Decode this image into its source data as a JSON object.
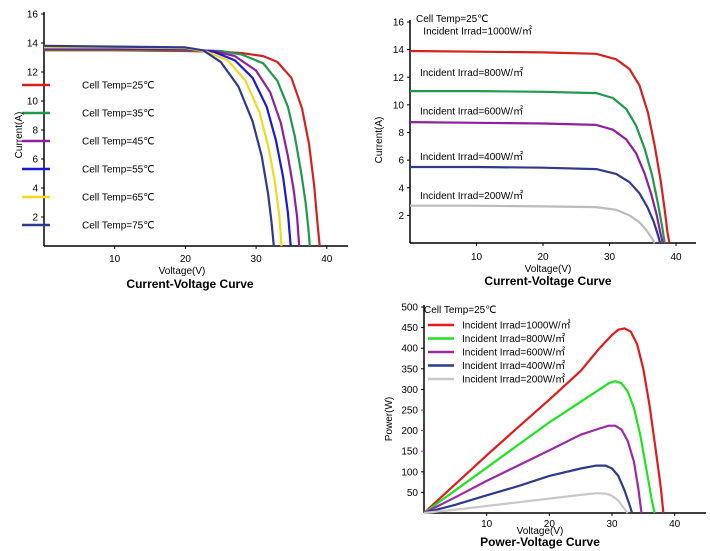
{
  "chart_data": [
    {
      "type": "line",
      "title": "Current-Voltage Curve",
      "xlabel": "Voltage(V)",
      "ylabel": "Current(A)",
      "xlim": [
        0,
        43
      ],
      "ylim": [
        0,
        16
      ],
      "xticks": [
        10,
        20,
        30,
        40
      ],
      "yticks": [
        2,
        4,
        6,
        8,
        10,
        12,
        14,
        16
      ],
      "legend_position": "left",
      "series": [
        {
          "name": "Cell Temp=25℃",
          "color": "#d42020",
          "x": [
            0,
            10,
            20,
            25,
            28,
            31,
            33,
            35,
            36.5,
            37.5,
            38.2,
            38.7,
            39
          ],
          "y": [
            13.5,
            13.5,
            13.45,
            13.4,
            13.3,
            13.1,
            12.7,
            11.6,
            9.5,
            7,
            4.2,
            1.5,
            0
          ]
        },
        {
          "name": "Cell Temp=35℃",
          "color": "#1f9a4c",
          "x": [
            0,
            10,
            20,
            25,
            28,
            31,
            33,
            34.5,
            35.5,
            36.4,
            37,
            37.4,
            37.6
          ],
          "y": [
            13.55,
            13.55,
            13.5,
            13.45,
            13.2,
            12.6,
            11.4,
            9.6,
            7.5,
            5,
            3,
            1.2,
            0
          ]
        },
        {
          "name": "Cell Temp=45℃",
          "color": "#8e1f9e",
          "x": [
            0,
            10,
            20,
            24,
            27,
            30,
            32,
            33.5,
            34.5,
            35.3,
            35.8,
            36.1
          ],
          "y": [
            13.6,
            13.6,
            13.55,
            13.45,
            13.1,
            12.1,
            10.6,
            8.5,
            6.2,
            3.9,
            2,
            0
          ]
        },
        {
          "name": "Cell Temp=55℃",
          "color": "#1a1ad0",
          "x": [
            0,
            10,
            20,
            24,
            27,
            29.5,
            31.5,
            32.8,
            33.8,
            34.5,
            34.9
          ],
          "y": [
            13.65,
            13.65,
            13.6,
            13.4,
            12.8,
            11.6,
            9.6,
            7.3,
            4.8,
            2.3,
            0
          ]
        },
        {
          "name": "Cell Temp=65℃",
          "color": "#f2d820",
          "x": [
            0,
            10,
            20,
            23,
            26,
            28.5,
            30.5,
            31.8,
            32.7,
            33.3,
            33.6
          ],
          "y": [
            13.7,
            13.7,
            13.65,
            13.4,
            12.8,
            11.4,
            9.2,
            6.7,
            4.3,
            2,
            0
          ]
        },
        {
          "name": "Cell Temp=75℃",
          "color": "#2f3a8c",
          "x": [
            0,
            10,
            20,
            22.5,
            25,
            27.5,
            29.5,
            30.8,
            31.7,
            32.2,
            32.5
          ],
          "y": [
            13.8,
            13.75,
            13.7,
            13.5,
            12.7,
            11,
            8.6,
            6.2,
            3.6,
            1.6,
            0
          ]
        }
      ]
    },
    {
      "type": "line",
      "title": "Current-Voltage Curve",
      "xlabel": "Voltage(V)",
      "ylabel": "Current(A)",
      "xlim": [
        0,
        43
      ],
      "ylim": [
        0,
        16
      ],
      "xticks": [
        10,
        20,
        30,
        40
      ],
      "yticks": [
        2,
        4,
        6,
        8,
        10,
        12,
        14,
        16
      ],
      "annotation": "Cell Temp=25℃",
      "series": [
        {
          "name": "Incident Irrad=1000W/㎡",
          "color": "#d42020",
          "label_pos": [
            2,
            15.1
          ],
          "x": [
            0,
            10,
            20,
            28,
            31,
            33,
            34.5,
            35.8,
            36.8,
            37.7,
            38.3,
            38.7,
            39
          ],
          "y": [
            13.9,
            13.85,
            13.8,
            13.7,
            13.3,
            12.6,
            11.4,
            9.4,
            7,
            4.5,
            2.4,
            0.8,
            0
          ]
        },
        {
          "name": "Incident Irrad=800W/㎡",
          "color": "#1f9a4c",
          "label_pos": [
            1.5,
            12.1
          ],
          "x": [
            0,
            10,
            20,
            28,
            30.5,
            32.5,
            34,
            35.3,
            36.4,
            37.3,
            37.9,
            38.3
          ],
          "y": [
            11,
            11,
            10.95,
            10.85,
            10.5,
            9.7,
            8.5,
            6.8,
            4.9,
            2.8,
            1.2,
            0
          ]
        },
        {
          "name": "Incident Irrad=600W/㎡",
          "color": "#8e1f9e",
          "label_pos": [
            1.5,
            9.3
          ],
          "x": [
            0,
            10,
            20,
            28,
            30.5,
            32.5,
            34,
            35.3,
            36.3,
            37.1,
            37.6,
            38
          ],
          "y": [
            8.75,
            8.7,
            8.65,
            8.55,
            8.2,
            7.5,
            6.5,
            5,
            3.5,
            2,
            0.8,
            0
          ]
        },
        {
          "name": "Incident Irrad=400W/㎡",
          "color": "#2f3a8c",
          "label_pos": [
            1.5,
            6
          ],
          "x": [
            0,
            10,
            20,
            28,
            31,
            33,
            34.5,
            35.7,
            36.6,
            37.2,
            37.6
          ],
          "y": [
            5.5,
            5.5,
            5.45,
            5.35,
            5,
            4.4,
            3.6,
            2.6,
            1.6,
            0.7,
            0
          ]
        },
        {
          "name": "Incident Irrad=200W/㎡",
          "color": "#bbbbbb",
          "label_pos": [
            1.5,
            3.2
          ],
          "x": [
            0,
            10,
            20,
            28,
            31,
            33,
            34.5,
            35.6,
            36.3,
            36.8
          ],
          "y": [
            2.7,
            2.7,
            2.65,
            2.6,
            2.4,
            2,
            1.5,
            0.9,
            0.4,
            0
          ]
        }
      ]
    },
    {
      "type": "line",
      "title": "Power-Voltage Curve",
      "xlabel": "Voltage(V)",
      "ylabel": "Power(W)",
      "xlim": [
        0,
        45
      ],
      "ylim": [
        0,
        500
      ],
      "xticks": [
        10,
        20,
        30,
        40
      ],
      "yticks": [
        50,
        100,
        150,
        200,
        250,
        300,
        350,
        400,
        450,
        500
      ],
      "annotation": "Cell Temp=25℃",
      "legend_position": "top-left",
      "series": [
        {
          "name": "Incident Irrad=1000W/㎡",
          "color": "#e01b1b",
          "x": [
            0,
            5,
            10,
            15,
            20,
            25,
            28,
            30,
            31,
            32,
            33,
            34,
            35,
            36,
            37,
            37.8,
            38.2
          ],
          "y": [
            0,
            70,
            140,
            208,
            275,
            345,
            400,
            432,
            445,
            448,
            440,
            410,
            350,
            260,
            150,
            60,
            0
          ]
        },
        {
          "name": "Incident Irrad=800W/㎡",
          "color": "#22e022",
          "x": [
            0,
            5,
            10,
            15,
            20,
            25,
            28,
            29.5,
            30.5,
            31.5,
            32.5,
            33.5,
            34.5,
            35.5,
            36.3,
            36.8
          ],
          "y": [
            0,
            55,
            110,
            165,
            220,
            270,
            300,
            315,
            320,
            315,
            295,
            255,
            190,
            105,
            35,
            0
          ]
        },
        {
          "name": "Incident Irrad=600W/㎡",
          "color": "#9b2aa6",
          "x": [
            0,
            5,
            10,
            15,
            20,
            25,
            28,
            29.5,
            30.5,
            31.5,
            32.5,
            33.5,
            34.2,
            34.7
          ],
          "y": [
            0,
            38,
            78,
            115,
            152,
            190,
            205,
            212,
            212,
            203,
            175,
            125,
            60,
            0
          ]
        },
        {
          "name": "Incident Irrad=400W/㎡",
          "color": "#2f3a8c",
          "x": [
            0,
            5,
            10,
            15,
            20,
            25,
            27.5,
            29,
            30,
            31,
            32,
            32.8,
            33.2
          ],
          "y": [
            0,
            20,
            43,
            65,
            90,
            108,
            115,
            115,
            108,
            90,
            55,
            20,
            0
          ]
        },
        {
          "name": "Incident Irrad=200W/㎡",
          "color": "#c8c8c8",
          "x": [
            0,
            5,
            10,
            15,
            20,
            25,
            27.5,
            29,
            30,
            31,
            32,
            32.5
          ],
          "y": [
            0,
            8,
            17,
            26,
            35,
            44,
            48,
            47,
            42,
            30,
            10,
            0
          ]
        }
      ]
    }
  ]
}
